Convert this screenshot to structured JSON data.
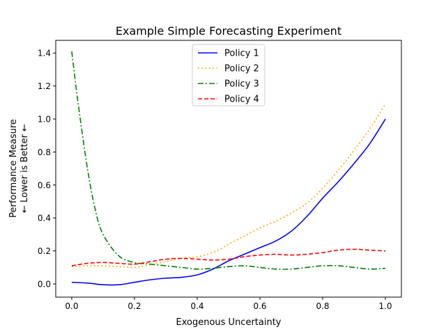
{
  "chart_data": {
    "type": "line",
    "title": "Example Simple Forecasting Experiment",
    "xlabel": "Exogenous Uncertainty",
    "ylabel": [
      "Performance Measure",
      "← Lower is Better ←"
    ],
    "xlim": [
      -0.051,
      1.051
    ],
    "ylim": [
      -0.08,
      1.477
    ],
    "xticks": [
      0.0,
      0.2,
      0.4,
      0.6,
      0.8,
      1.0
    ],
    "xtick_labels": [
      "0.0",
      "0.2",
      "0.4",
      "0.6",
      "0.8",
      "1.0"
    ],
    "yticks": [
      0.0,
      0.2,
      0.4,
      0.6,
      0.8,
      1.0,
      1.2,
      1.4
    ],
    "ytick_labels": [
      "0.0",
      "0.2",
      "0.4",
      "0.6",
      "0.8",
      "1.0",
      "1.2",
      "1.4"
    ],
    "grid": false,
    "legend": "top-center",
    "series": [
      {
        "name": "Policy 1",
        "color": "#0000ff",
        "dash": "solid",
        "x": [
          0,
          0.05,
          0.1,
          0.15,
          0.2,
          0.25,
          0.3,
          0.35,
          0.4,
          0.45,
          0.5,
          0.55,
          0.6,
          0.65,
          0.7,
          0.75,
          0.8,
          0.85,
          0.9,
          0.95,
          1.0
        ],
        "y": [
          0.01,
          0.005,
          -0.005,
          -0.005,
          0.01,
          0.025,
          0.035,
          0.04,
          0.055,
          0.09,
          0.14,
          0.18,
          0.22,
          0.26,
          0.32,
          0.41,
          0.52,
          0.62,
          0.73,
          0.85,
          1.0
        ]
      },
      {
        "name": "Policy 2",
        "color": "#ffa500",
        "dash": "dotted",
        "x": [
          0,
          0.05,
          0.1,
          0.15,
          0.2,
          0.25,
          0.3,
          0.35,
          0.4,
          0.45,
          0.5,
          0.55,
          0.6,
          0.65,
          0.7,
          0.75,
          0.8,
          0.85,
          0.9,
          0.95,
          1.0
        ],
        "y": [
          0.105,
          0.11,
          0.11,
          0.105,
          0.1,
          0.115,
          0.135,
          0.155,
          0.165,
          0.19,
          0.24,
          0.29,
          0.34,
          0.38,
          0.43,
          0.49,
          0.58,
          0.69,
          0.81,
          0.94,
          1.09
        ]
      },
      {
        "name": "Policy 3",
        "color": "#008000",
        "dash": "dashdot",
        "x": [
          0,
          0.02,
          0.05,
          0.075,
          0.1,
          0.15,
          0.2,
          0.25,
          0.3,
          0.35,
          0.4,
          0.45,
          0.5,
          0.55,
          0.6,
          0.65,
          0.7,
          0.75,
          0.8,
          0.85,
          0.9,
          0.95,
          1.0
        ],
        "y": [
          1.41,
          1.1,
          0.7,
          0.45,
          0.3,
          0.17,
          0.13,
          0.12,
          0.11,
          0.1,
          0.09,
          0.095,
          0.105,
          0.11,
          0.1,
          0.09,
          0.09,
          0.1,
          0.11,
          0.11,
          0.1,
          0.09,
          0.095
        ]
      },
      {
        "name": "Policy 4",
        "color": "#ff0000",
        "dash": "dashed",
        "x": [
          0,
          0.05,
          0.1,
          0.15,
          0.2,
          0.25,
          0.3,
          0.35,
          0.4,
          0.45,
          0.5,
          0.55,
          0.6,
          0.65,
          0.7,
          0.75,
          0.8,
          0.85,
          0.9,
          0.95,
          1.0
        ],
        "y": [
          0.11,
          0.125,
          0.13,
          0.125,
          0.12,
          0.135,
          0.15,
          0.155,
          0.15,
          0.145,
          0.15,
          0.165,
          0.175,
          0.18,
          0.175,
          0.18,
          0.19,
          0.205,
          0.21,
          0.205,
          0.2
        ]
      }
    ]
  }
}
